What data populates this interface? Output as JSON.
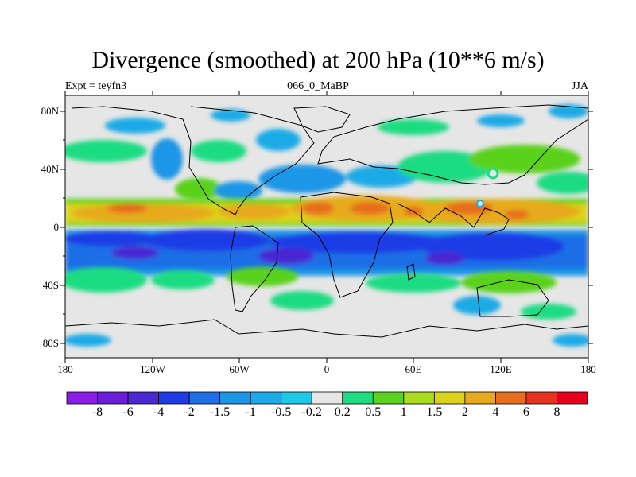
{
  "title": "Divergence (smoothed) at 200 hPa (10**6 m/s)",
  "subtitle": {
    "left": "Expt = teyfn3",
    "center": "066_0_MaBP",
    "right": "JJA"
  },
  "lat_labels": [
    "80N",
    "40N",
    "0",
    "40S",
    "80S"
  ],
  "lon_labels": [
    "180",
    "120W",
    "60W",
    "0",
    "60E",
    "120E",
    "180"
  ],
  "colorbar": {
    "labels": [
      "-8",
      "-6",
      "-4",
      "-2",
      "-1.5",
      "-1",
      "-0.5",
      "-0.2",
      "0.2",
      "0.5",
      "1",
      "1.5",
      "2",
      "4",
      "6",
      "8"
    ],
    "colors": [
      "#8a1ee6",
      "#6a1ed8",
      "#4a28d2",
      "#1e3ce6",
      "#1e6ee6",
      "#1e96e6",
      "#1eaae6",
      "#1ec8e6",
      "#e6e6e6",
      "#1edc82",
      "#5ad21e",
      "#aadc1e",
      "#dcd21e",
      "#e6aa1e",
      "#e66e1e",
      "#e6321e",
      "#e6001e"
    ]
  }
}
